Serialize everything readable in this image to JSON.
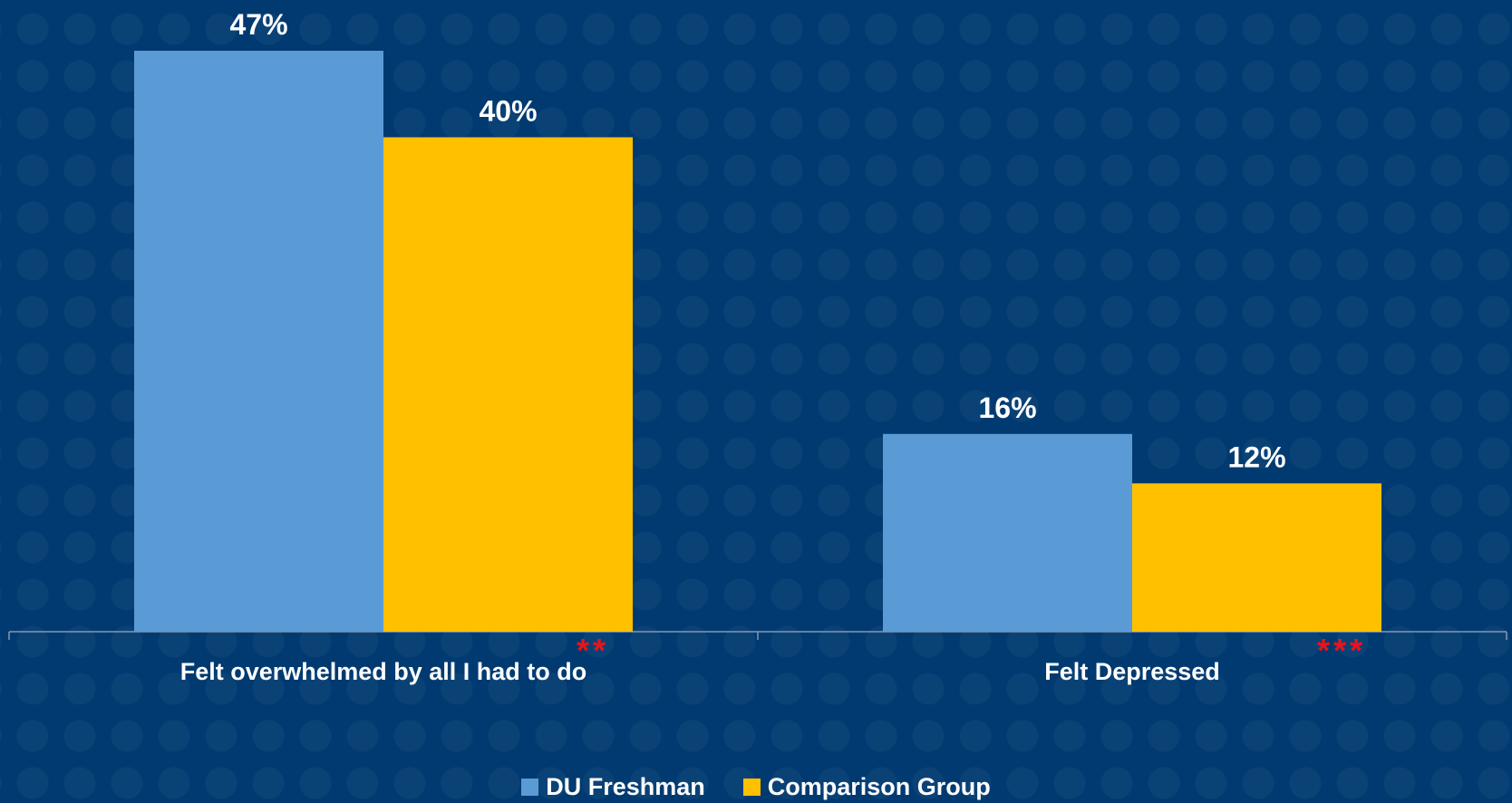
{
  "chart_data": {
    "type": "bar",
    "categories": [
      "Felt overwhelmed by all I had to do",
      "Felt Depressed"
    ],
    "series": [
      {
        "name": "DU Freshman",
        "color": "#5b9bd5",
        "values": [
          47,
          16
        ],
        "labels": [
          "47%",
          "16%"
        ]
      },
      {
        "name": "Comparison Group",
        "color": "#ffc000",
        "values": [
          40,
          12
        ],
        "labels": [
          "40%",
          "12%"
        ]
      }
    ],
    "significance": [
      "**",
      "***"
    ],
    "significance_color": "#e8141b",
    "title": "",
    "xlabel": "",
    "ylabel": "",
    "ylim": [
      0,
      47
    ],
    "grid": false,
    "legend": "bottom-center",
    "background_color": "#003a70"
  }
}
